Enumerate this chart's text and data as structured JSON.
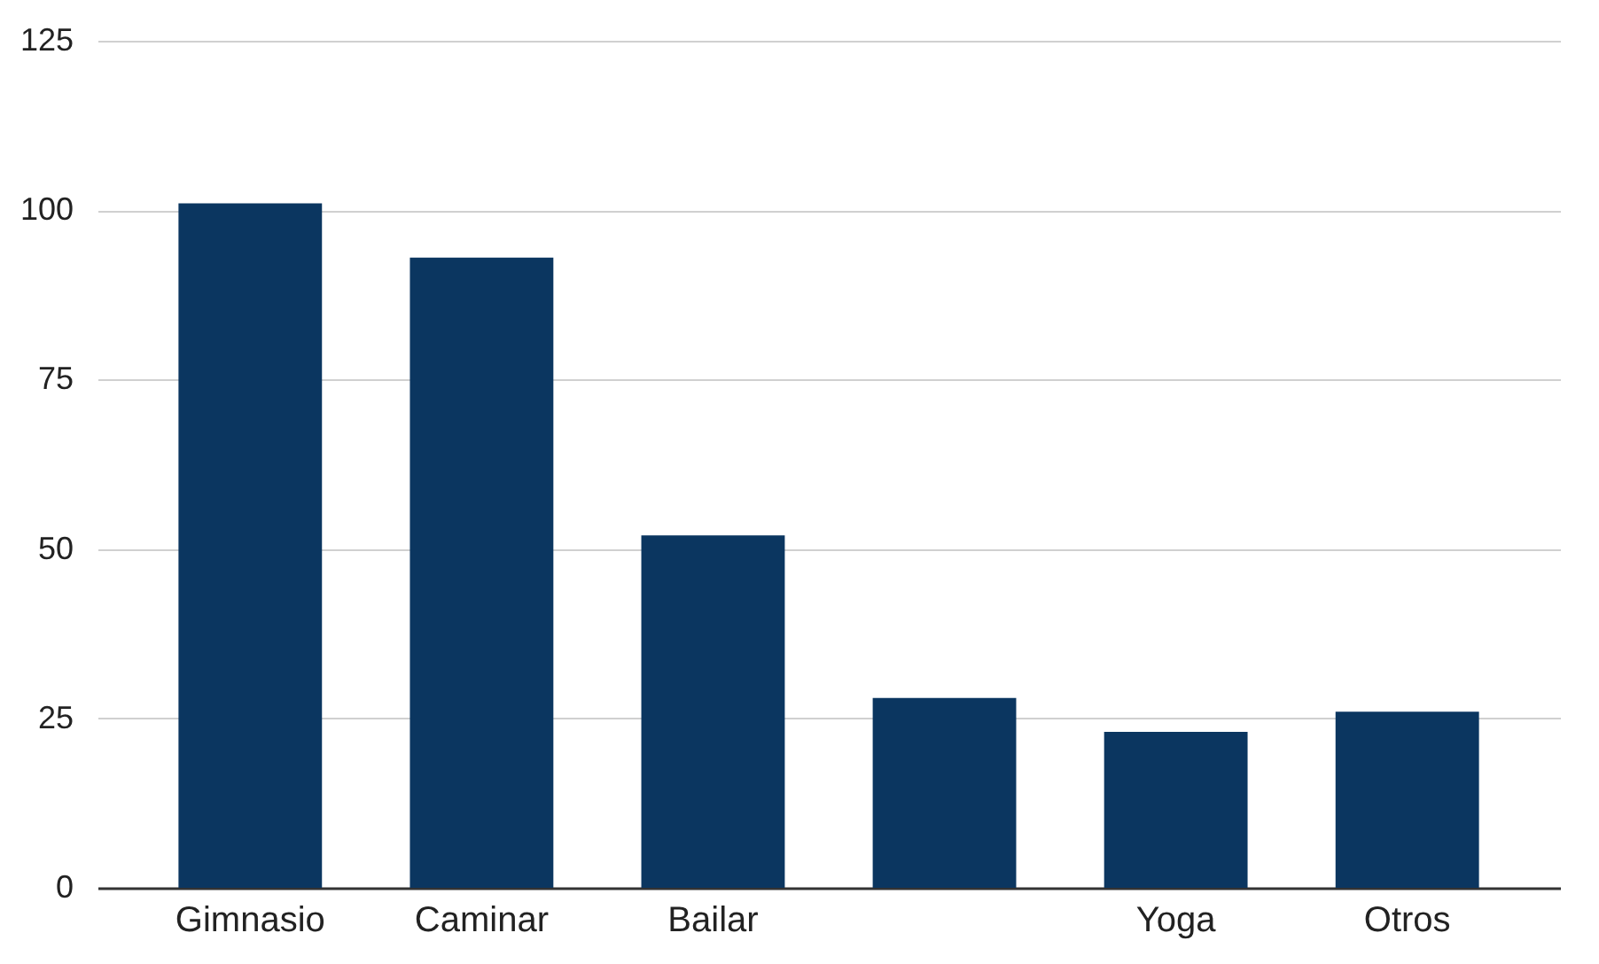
{
  "chart_data": {
    "type": "bar",
    "categories": [
      "Gimnasio",
      "Caminar",
      "Bailar",
      null,
      "Yoga",
      "Otros"
    ],
    "values": [
      101,
      93,
      52,
      28,
      23,
      26
    ],
    "color": "#0b3660",
    "ylim": [
      0,
      125
    ],
    "yticks": [
      0,
      25,
      50,
      75,
      100,
      125
    ],
    "grid": "y"
  }
}
